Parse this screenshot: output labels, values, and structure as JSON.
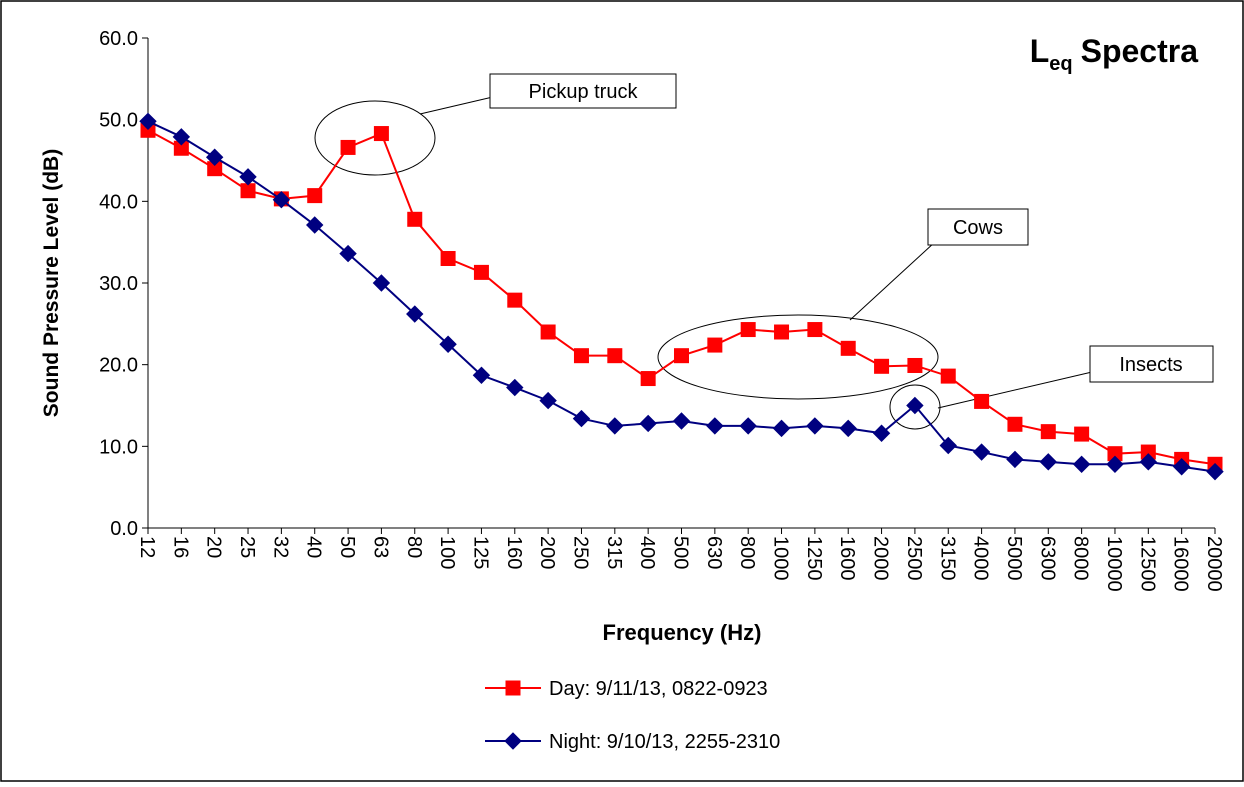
{
  "chart_data": {
    "type": "line",
    "title_symbol": "L",
    "title_subscript": "eq",
    "title_text": "Spectra",
    "x_label": "Frequency (Hz)",
    "y_label": "Sound  Pressure Level (dB)",
    "categories": [
      "12",
      "16",
      "20",
      "25",
      "32",
      "40",
      "50",
      "63",
      "80",
      "100",
      "125",
      "160",
      "200",
      "250",
      "315",
      "400",
      "500",
      "630",
      "800",
      "1000",
      "1250",
      "1600",
      "2000",
      "2500",
      "3150",
      "4000",
      "5000",
      "6300",
      "8000",
      "10000",
      "12500",
      "16000",
      "20000"
    ],
    "series": [
      {
        "name": "Day: 9/11/13, 0822-0923",
        "color": "#ff0000",
        "marker": "square",
        "values": [
          48.7,
          46.5,
          44.0,
          41.3,
          40.3,
          40.7,
          46.6,
          48.3,
          37.8,
          33.0,
          31.3,
          27.9,
          24.0,
          21.1,
          21.1,
          18.3,
          21.1,
          22.4,
          24.3,
          24.0,
          24.3,
          22.0,
          19.8,
          19.9,
          18.6,
          15.5,
          12.7,
          11.8,
          11.5,
          9.1,
          9.3,
          8.4,
          7.8
        ]
      },
      {
        "name": "Night: 9/10/13, 2255-2310",
        "color": "#000080",
        "marker": "diamond",
        "values": [
          49.8,
          47.9,
          45.4,
          43.0,
          40.2,
          37.1,
          33.6,
          30.0,
          26.2,
          22.5,
          18.7,
          17.2,
          15.6,
          13.4,
          12.5,
          12.8,
          13.1,
          12.5,
          12.5,
          12.2,
          12.5,
          12.2,
          11.6,
          15.0,
          10.1,
          9.3,
          8.4,
          8.1,
          7.8,
          7.8,
          8.1,
          7.5,
          6.9
        ]
      }
    ],
    "ylim": [
      0,
      60
    ],
    "yticks": [
      {
        "value": 0,
        "label": "0.0"
      },
      {
        "value": 10,
        "label": "10.0"
      },
      {
        "value": 20,
        "label": "20.0"
      },
      {
        "value": 30,
        "label": "30.0"
      },
      {
        "value": 40,
        "label": "40.0"
      },
      {
        "value": 50,
        "label": "50.0"
      },
      {
        "value": 60,
        "label": "60.0"
      }
    ],
    "legend": "bottom",
    "annotations": [
      "Pickup truck",
      "Cows",
      "Insects"
    ]
  }
}
